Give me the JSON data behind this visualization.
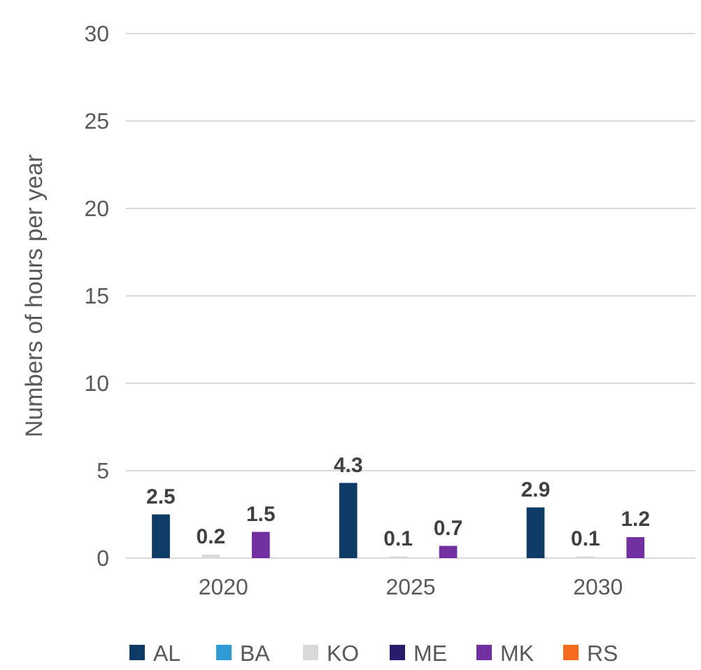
{
  "chart_data": {
    "type": "bar",
    "ylabel": "Numbers of hours per year",
    "categories": [
      "2020",
      "2025",
      "2030"
    ],
    "series": [
      {
        "name": "AL",
        "color": "#0e3a66",
        "values": [
          2.5,
          4.3,
          2.9
        ],
        "value_labels": [
          "2.5",
          "4.3",
          "2.9"
        ]
      },
      {
        "name": "BA",
        "color": "#2e9bd6",
        "values": [
          0,
          0,
          0
        ],
        "value_labels": [
          null,
          null,
          null
        ]
      },
      {
        "name": "KO",
        "color": "#d9d9d9",
        "values": [
          0.2,
          0.1,
          0.1
        ],
        "value_labels": [
          "0.2",
          "0.1",
          "0.1"
        ]
      },
      {
        "name": "ME",
        "color": "#2a1a6e",
        "values": [
          0,
          0,
          0
        ],
        "value_labels": [
          null,
          null,
          null
        ]
      },
      {
        "name": "MK",
        "color": "#7030a0",
        "values": [
          1.5,
          0.7,
          1.2
        ],
        "value_labels": [
          "1.5",
          "0.7",
          "1.2"
        ]
      },
      {
        "name": "RS",
        "color": "#f46b1e",
        "values": [
          0,
          0,
          0
        ],
        "value_labels": [
          null,
          null,
          null
        ]
      }
    ],
    "ylim": [
      0,
      30
    ],
    "yticks": [
      0,
      5,
      10,
      15,
      20,
      25,
      30
    ],
    "grid": "y",
    "legend": "bottom"
  }
}
